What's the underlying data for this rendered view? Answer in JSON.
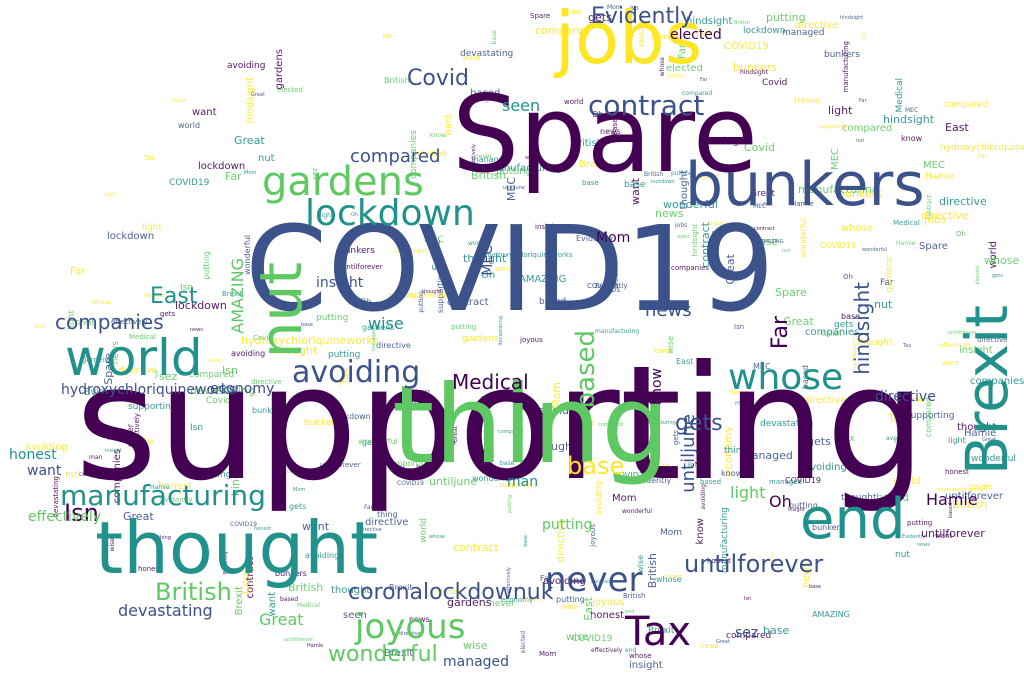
{
  "wordcloud": {
    "palette": [
      "#440154",
      "#3b528b",
      "#21918c",
      "#5ec962",
      "#fde725"
    ],
    "words": [
      {
        "text": "supporting",
        "color": "#440154"
      },
      {
        "text": "COVID19",
        "color": "#3b528b"
      },
      {
        "text": "Spare",
        "color": "#440154"
      },
      {
        "text": "thing",
        "color": "#5ec962"
      },
      {
        "text": "thought",
        "color": "#21918c"
      },
      {
        "text": "jobs",
        "color": "#fde725"
      },
      {
        "text": "bunkers",
        "color": "#3b528b"
      },
      {
        "text": "world",
        "color": "#21918c"
      },
      {
        "text": "gardens",
        "color": "#5ec962"
      },
      {
        "text": "lockdown",
        "color": "#21918c"
      },
      {
        "text": "nut",
        "color": "#5ec962"
      },
      {
        "text": "end",
        "color": "#21918c"
      },
      {
        "text": "Brexit",
        "color": "#21918c"
      },
      {
        "text": "Tax",
        "color": "#440154"
      },
      {
        "text": "never",
        "color": "#3b528b"
      },
      {
        "text": "joyous",
        "color": "#5ec962"
      },
      {
        "text": "whose",
        "color": "#21918c"
      },
      {
        "text": "avoiding",
        "color": "#3b528b"
      },
      {
        "text": "contract",
        "color": "#3b528b"
      },
      {
        "text": "manufacturing",
        "color": "#21918c"
      },
      {
        "text": "coronalockdownuk",
        "color": "#3b528b"
      },
      {
        "text": "untilforever",
        "color": "#3b528b"
      },
      {
        "text": "British",
        "color": "#5ec962"
      },
      {
        "text": "Covid",
        "color": "#3b528b"
      },
      {
        "text": "companies",
        "color": "#3b528b"
      },
      {
        "text": "East",
        "color": "#21918c"
      },
      {
        "text": "Evidently",
        "color": "#3b528b"
      },
      {
        "text": "gets",
        "color": "#3b528b"
      },
      {
        "text": "Medical",
        "color": "#440154"
      },
      {
        "text": "wonderful",
        "color": "#5ec962"
      },
      {
        "text": "hydroxychloriquineworks",
        "color": "#3b528b"
      },
      {
        "text": "Isn",
        "color": "#440154"
      },
      {
        "text": "based",
        "color": "#5ec962"
      },
      {
        "text": "base",
        "color": "#fde725"
      },
      {
        "text": "compared",
        "color": "#3b528b"
      },
      {
        "text": "Far",
        "color": "#440154"
      },
      {
        "text": "hindsight",
        "color": "#3b528b"
      },
      {
        "text": "untiljune",
        "color": "#3b528b"
      },
      {
        "text": "news",
        "color": "#3b528b"
      },
      {
        "text": "AMAZING",
        "color": "#5ec962"
      },
      {
        "text": "Great",
        "color": "#5ec962"
      },
      {
        "text": "devastating",
        "color": "#3b528b"
      },
      {
        "text": "managed",
        "color": "#3b528b"
      },
      {
        "text": "Hamie",
        "color": "#440154"
      },
      {
        "text": "effectively",
        "color": "#5ec962"
      },
      {
        "text": "honest",
        "color": "#21918c"
      },
      {
        "text": "sez",
        "color": "#3b528b"
      },
      {
        "text": "seen",
        "color": "#21918c"
      },
      {
        "text": "insight",
        "color": "#3b528b"
      },
      {
        "text": "elected",
        "color": "#440154"
      },
      {
        "text": "putting",
        "color": "#5ec962"
      },
      {
        "text": "light",
        "color": "#5ec962"
      },
      {
        "text": "economy",
        "color": "#3b528b"
      },
      {
        "text": "Mom",
        "color": "#440154"
      },
      {
        "text": "MEC",
        "color": "#3b528b"
      },
      {
        "text": "wise",
        "color": "#21918c"
      },
      {
        "text": "want",
        "color": "#3b528b"
      },
      {
        "text": "man",
        "color": "#21918c"
      },
      {
        "text": "Oh",
        "color": "#440154"
      },
      {
        "text": "directive",
        "color": "#3b528b"
      },
      {
        "text": "know",
        "color": "#440154"
      }
    ]
  }
}
